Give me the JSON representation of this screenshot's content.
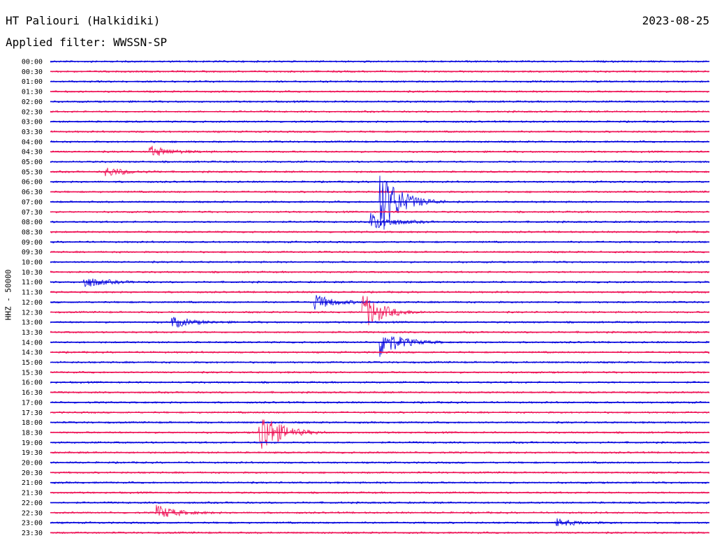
{
  "header": {
    "station": "HT Paliouri (Halkidiki)",
    "date": "2023-08-25",
    "filter": "Applied filter: WWSSN-SP"
  },
  "chart_data": {
    "type": "line",
    "title": "HT Paliouri (Halkidiki)",
    "subtitle": "Applied filter: WWSSN-SP",
    "ylabel": "HHZ - 50000",
    "xlabel": "",
    "grid": false,
    "colors": {
      "even_rows": "#0000dd",
      "odd_rows": "#ee1155"
    },
    "row_labels": [
      "00:00",
      "00:30",
      "01:00",
      "01:30",
      "02:00",
      "02:30",
      "03:00",
      "03:30",
      "04:00",
      "04:30",
      "05:00",
      "05:30",
      "06:00",
      "06:30",
      "07:00",
      "07:30",
      "08:00",
      "08:30",
      "09:00",
      "09:30",
      "10:00",
      "10:30",
      "11:00",
      "11:30",
      "12:00",
      "12:30",
      "13:00",
      "13:30",
      "14:00",
      "14:30",
      "15:00",
      "15:30",
      "16:00",
      "16:30",
      "17:00",
      "17:30",
      "18:00",
      "18:30",
      "19:00",
      "19:30",
      "20:00",
      "20:30",
      "21:00",
      "21:30",
      "22:00",
      "22:30",
      "23:00",
      "23:30"
    ],
    "events": [
      {
        "row": "04:30",
        "minute": 4.5,
        "amplitude": 0.6
      },
      {
        "row": "05:30",
        "minute": 2.5,
        "amplitude": 0.5
      },
      {
        "row": "07:00",
        "minute": 15.0,
        "amplitude": 3.5
      },
      {
        "row": "08:00",
        "minute": 14.5,
        "amplitude": 1.0
      },
      {
        "row": "11:00",
        "minute": 1.5,
        "amplitude": 0.6
      },
      {
        "row": "12:00",
        "minute": 12.0,
        "amplitude": 0.8
      },
      {
        "row": "12:30",
        "minute": 14.2,
        "amplitude": 2.0
      },
      {
        "row": "13:00",
        "minute": 5.5,
        "amplitude": 0.6
      },
      {
        "row": "14:00",
        "minute": 15.0,
        "amplitude": 1.5
      },
      {
        "row": "18:30",
        "minute": 9.5,
        "amplitude": 2.5
      },
      {
        "row": "22:30",
        "minute": 4.8,
        "amplitude": 0.8
      },
      {
        "row": "23:00",
        "minute": 23.0,
        "amplitude": 0.4
      }
    ]
  }
}
